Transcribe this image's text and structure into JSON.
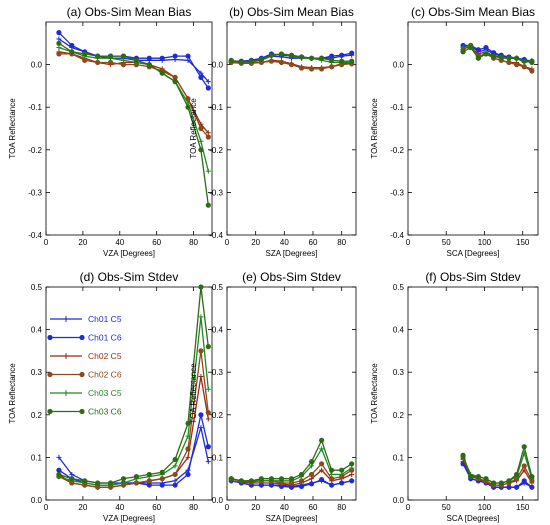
{
  "figure": {
    "background": "#ffffff"
  },
  "series_styles": [
    {
      "name": "Ch01 C5",
      "color": "#1f2bd6",
      "marker": "plus"
    },
    {
      "name": "Ch01 C6",
      "color": "#1f2bd6",
      "marker": "dot"
    },
    {
      "name": "Ch02 C5",
      "color": "#9b2a15",
      "marker": "plus"
    },
    {
      "name": "Ch02 C6",
      "color": "#8a4a1c",
      "marker": "dot"
    },
    {
      "name": "Ch03 C5",
      "color": "#1e8a1e",
      "marker": "plus"
    },
    {
      "name": "Ch03 C6",
      "color": "#2d6b14",
      "marker": "dot"
    }
  ],
  "chart_data": [
    {
      "id": "a",
      "type": "line",
      "title": "(a) Obs-Sim Mean Bias",
      "xlabel": "VZA [Degrees]",
      "ylabel": "TOA Reflectance",
      "xlim": [
        0,
        90
      ],
      "ylim": [
        -0.4,
        0.1
      ],
      "xticks": [
        0,
        20,
        40,
        60,
        80
      ],
      "xticklabels": [
        "0",
        "20",
        "40",
        "60",
        "80"
      ],
      "yticks": [
        -0.4,
        -0.3,
        -0.2,
        -0.1,
        0.0
      ],
      "yticklabels": [
        "-0.4",
        "-0.3",
        "-0.2",
        "-0.1",
        "0.0"
      ],
      "legend": null,
      "x": [
        7,
        14,
        21,
        28,
        35,
        42,
        49,
        56,
        63,
        70,
        77,
        84,
        88
      ],
      "series": [
        {
          "name": "Ch01 C5",
          "values": [
            0.06,
            0.04,
            0.03,
            0.02,
            0.015,
            0.015,
            0.01,
            0.01,
            0.01,
            0.012,
            0.01,
            -0.02,
            -0.04
          ]
        },
        {
          "name": "Ch01 C6",
          "values": [
            0.075,
            0.045,
            0.03,
            0.02,
            0.02,
            0.02,
            0.015,
            0.015,
            0.015,
            0.02,
            0.02,
            -0.03,
            -0.055
          ]
        },
        {
          "name": "Ch02 C5",
          "values": [
            0.03,
            0.025,
            0.015,
            0.005,
            0.0,
            0.005,
            0.005,
            0.0,
            -0.01,
            -0.03,
            -0.08,
            -0.14,
            -0.16
          ]
        },
        {
          "name": "Ch02 C6",
          "values": [
            0.025,
            0.025,
            0.01,
            0.005,
            0.005,
            0.0,
            0.0,
            -0.005,
            -0.015,
            -0.03,
            -0.08,
            -0.15,
            -0.17
          ]
        },
        {
          "name": "Ch03 C5",
          "values": [
            0.04,
            0.03,
            0.02,
            0.015,
            0.015,
            0.01,
            0.005,
            0.0,
            -0.02,
            -0.04,
            -0.09,
            -0.18,
            -0.25
          ]
        },
        {
          "name": "Ch03 C6",
          "values": [
            0.05,
            0.03,
            0.025,
            0.02,
            0.02,
            0.02,
            0.01,
            0.0,
            -0.02,
            -0.04,
            -0.1,
            -0.2,
            -0.33
          ]
        }
      ]
    },
    {
      "id": "b",
      "type": "line",
      "title": "(b) Obs-Sim Mean Bias",
      "xlabel": "SZA [Degrees]",
      "ylabel": "TOA Reflectance",
      "xlim": [
        0,
        90
      ],
      "ylim": [
        -0.4,
        0.1
      ],
      "xticks": [
        0,
        20,
        40,
        60,
        80
      ],
      "xticklabels": [
        "0",
        "20",
        "40",
        "60",
        "80"
      ],
      "yticks": [
        -0.4,
        -0.3,
        -0.2,
        -0.1,
        0.0
      ],
      "yticklabels": [
        "-0.4",
        "-0.3",
        "-0.2",
        "-0.1",
        "0.0"
      ],
      "legend": null,
      "x": [
        3,
        10,
        17,
        24,
        31,
        38,
        45,
        52,
        59,
        66,
        73,
        80,
        87
      ],
      "series": [
        {
          "name": "Ch01 C5",
          "values": [
            0.005,
            0.007,
            0.01,
            0.015,
            0.02,
            0.018,
            0.015,
            0.015,
            0.015,
            0.015,
            0.015,
            0.02,
            0.022
          ]
        },
        {
          "name": "Ch01 C6",
          "values": [
            0.008,
            0.008,
            0.01,
            0.015,
            0.025,
            0.022,
            0.02,
            0.018,
            0.015,
            0.015,
            0.02,
            0.022,
            0.027
          ]
        },
        {
          "name": "Ch02 C5",
          "values": [
            0.005,
            0.005,
            0.005,
            0.005,
            0.01,
            0.008,
            0.002,
            -0.005,
            -0.007,
            -0.007,
            -0.005,
            0.002,
            0.002
          ]
        },
        {
          "name": "Ch02 C6",
          "values": [
            0.005,
            0.003,
            0.003,
            0.005,
            0.008,
            0.005,
            0.0,
            -0.008,
            -0.01,
            -0.01,
            -0.005,
            0.0,
            0.002
          ]
        },
        {
          "name": "Ch03 C5",
          "values": [
            0.008,
            0.006,
            0.006,
            0.01,
            0.02,
            0.025,
            0.02,
            0.015,
            0.015,
            0.01,
            0.005,
            0.005,
            0.005
          ]
        },
        {
          "name": "Ch03 C6",
          "values": [
            0.01,
            0.006,
            0.008,
            0.012,
            0.022,
            0.025,
            0.022,
            0.018,
            0.015,
            0.015,
            0.01,
            0.008,
            0.008
          ]
        }
      ]
    },
    {
      "id": "c",
      "type": "line",
      "title": "(c) Obs-Sim Mean Bias",
      "xlabel": "SCA [Degrees]",
      "ylabel": "TOA Reflectance",
      "xlim": [
        0,
        170
      ],
      "ylim": [
        -0.4,
        0.1
      ],
      "xticks": [
        0,
        50,
        100,
        150
      ],
      "xticklabels": [
        "0",
        "50",
        "100",
        "150"
      ],
      "yticks": [
        -0.4,
        -0.3,
        -0.2,
        -0.1,
        0.0
      ],
      "yticklabels": [
        "-0.4",
        "-0.3",
        "-0.2",
        "-0.1",
        "0.0"
      ],
      "legend": null,
      "x": [
        72,
        82,
        92,
        102,
        112,
        122,
        132,
        142,
        152,
        162
      ],
      "series": [
        {
          "name": "Ch01 C5",
          "values": [
            0.04,
            0.045,
            0.03,
            0.035,
            0.025,
            0.02,
            0.015,
            0.015,
            0.01,
            0.005
          ]
        },
        {
          "name": "Ch01 C6",
          "values": [
            0.045,
            0.045,
            0.035,
            0.04,
            0.028,
            0.022,
            0.018,
            0.015,
            0.012,
            0.008
          ]
        },
        {
          "name": "Ch02 C5",
          "values": [
            0.04,
            0.04,
            0.025,
            0.03,
            0.015,
            0.01,
            0.005,
            0.005,
            -0.005,
            -0.01
          ]
        },
        {
          "name": "Ch02 C6",
          "values": [
            0.035,
            0.045,
            0.02,
            0.025,
            0.015,
            0.01,
            0.005,
            0.0,
            -0.005,
            -0.015
          ]
        },
        {
          "name": "Ch03 C5",
          "values": [
            0.04,
            0.045,
            0.015,
            0.03,
            0.02,
            0.015,
            0.015,
            0.015,
            0.005,
            0.01
          ]
        },
        {
          "name": "Ch03 C6",
          "values": [
            0.03,
            0.04,
            0.015,
            0.025,
            0.02,
            0.018,
            0.015,
            0.015,
            0.008,
            0.005
          ]
        }
      ]
    },
    {
      "id": "d",
      "type": "line",
      "title": "(d) Obs-Sim Stdev",
      "xlabel": "VZA [Degrees]",
      "ylabel": "TOA Reflectance",
      "xlim": [
        0,
        90
      ],
      "ylim": [
        0,
        0.5
      ],
      "xticks": [
        0,
        20,
        40,
        60,
        80
      ],
      "xticklabels": [
        "0",
        "20",
        "40",
        "60",
        "80"
      ],
      "yticks": [
        0.0,
        0.1,
        0.2,
        0.3,
        0.4,
        0.5
      ],
      "yticklabels": [
        "0.0",
        "0.1",
        "0.2",
        "0.3",
        "0.4",
        "0.5"
      ],
      "legend": "top-left",
      "x": [
        7,
        14,
        21,
        28,
        35,
        42,
        49,
        56,
        63,
        70,
        77,
        84,
        88
      ],
      "series": [
        {
          "name": "Ch01 C5",
          "values": [
            0.1,
            0.06,
            0.045,
            0.04,
            0.04,
            0.04,
            0.04,
            0.04,
            0.04,
            0.045,
            0.07,
            0.17,
            0.09
          ]
        },
        {
          "name": "Ch01 C6",
          "values": [
            0.07,
            0.05,
            0.04,
            0.035,
            0.035,
            0.04,
            0.04,
            0.035,
            0.035,
            0.035,
            0.06,
            0.2,
            0.125
          ]
        },
        {
          "name": "Ch02 C5",
          "values": [
            0.06,
            0.04,
            0.035,
            0.03,
            0.03,
            0.035,
            0.04,
            0.045,
            0.05,
            0.06,
            0.1,
            0.29,
            0.19
          ]
        },
        {
          "name": "Ch02 C6",
          "values": [
            0.055,
            0.04,
            0.035,
            0.03,
            0.03,
            0.035,
            0.04,
            0.045,
            0.05,
            0.06,
            0.12,
            0.35,
            0.205
          ]
        },
        {
          "name": "Ch03 C5",
          "values": [
            0.055,
            0.045,
            0.04,
            0.035,
            0.035,
            0.04,
            0.05,
            0.055,
            0.06,
            0.08,
            0.15,
            0.43,
            0.26
          ]
        },
        {
          "name": "Ch03 C6",
          "values": [
            0.06,
            0.05,
            0.045,
            0.04,
            0.04,
            0.05,
            0.055,
            0.06,
            0.065,
            0.095,
            0.18,
            0.5,
            0.36
          ]
        }
      ]
    },
    {
      "id": "e",
      "type": "line",
      "title": "(e) Obs-Sim Stdev",
      "xlabel": "SZA [Degrees]",
      "ylabel": "TOA Reflectance",
      "xlim": [
        0,
        90
      ],
      "ylim": [
        0,
        0.5
      ],
      "xticks": [
        0,
        20,
        40,
        60,
        80
      ],
      "xticklabels": [
        "0",
        "20",
        "40",
        "60",
        "80"
      ],
      "yticks": [
        0.0,
        0.1,
        0.2,
        0.3,
        0.4,
        0.5
      ],
      "yticklabels": [
        "0.0",
        "0.1",
        "0.2",
        "0.3",
        "0.4",
        "0.5"
      ],
      "legend": null,
      "x": [
        3,
        10,
        17,
        24,
        31,
        38,
        45,
        52,
        59,
        66,
        73,
        80,
        87
      ],
      "series": [
        {
          "name": "Ch01 C5",
          "values": [
            0.045,
            0.04,
            0.035,
            0.035,
            0.035,
            0.035,
            0.032,
            0.035,
            0.04,
            0.045,
            0.035,
            0.04,
            0.045
          ]
        },
        {
          "name": "Ch01 C6",
          "values": [
            0.045,
            0.04,
            0.035,
            0.035,
            0.035,
            0.032,
            0.03,
            0.032,
            0.038,
            0.048,
            0.035,
            0.04,
            0.045
          ]
        },
        {
          "name": "Ch02 C5",
          "values": [
            0.045,
            0.042,
            0.04,
            0.04,
            0.04,
            0.038,
            0.035,
            0.04,
            0.05,
            0.07,
            0.045,
            0.05,
            0.06
          ]
        },
        {
          "name": "Ch02 C6",
          "values": [
            0.05,
            0.045,
            0.042,
            0.045,
            0.045,
            0.04,
            0.04,
            0.045,
            0.06,
            0.085,
            0.05,
            0.055,
            0.07
          ]
        },
        {
          "name": "Ch03 C5",
          "values": [
            0.05,
            0.045,
            0.045,
            0.045,
            0.045,
            0.045,
            0.045,
            0.055,
            0.08,
            0.12,
            0.06,
            0.06,
            0.075
          ]
        },
        {
          "name": "Ch03 C6",
          "values": [
            0.05,
            0.045,
            0.045,
            0.05,
            0.05,
            0.05,
            0.05,
            0.06,
            0.09,
            0.14,
            0.07,
            0.07,
            0.085
          ]
        }
      ]
    },
    {
      "id": "f",
      "type": "line",
      "title": "(f) Obs-Sim Stdev",
      "xlabel": "SCA [Degrees]",
      "ylabel": "TOA Reflectance",
      "xlim": [
        0,
        170
      ],
      "ylim": [
        0,
        0.5
      ],
      "xticks": [
        0,
        50,
        100,
        150
      ],
      "xticklabels": [
        "0",
        "50",
        "100",
        "150"
      ],
      "yticks": [
        0.0,
        0.1,
        0.2,
        0.3,
        0.4,
        0.5
      ],
      "yticklabels": [
        "0.0",
        "0.1",
        "0.2",
        "0.3",
        "0.4",
        "0.5"
      ],
      "legend": null,
      "x": [
        72,
        82,
        92,
        102,
        112,
        122,
        132,
        142,
        152,
        162
      ],
      "series": [
        {
          "name": "Ch01 C5",
          "values": [
            0.09,
            0.05,
            0.045,
            0.04,
            0.03,
            0.03,
            0.03,
            0.03,
            0.04,
            0.03
          ]
        },
        {
          "name": "Ch01 C6",
          "values": [
            0.085,
            0.05,
            0.045,
            0.04,
            0.03,
            0.03,
            0.03,
            0.03,
            0.045,
            0.03
          ]
        },
        {
          "name": "Ch02 C5",
          "values": [
            0.095,
            0.055,
            0.05,
            0.04,
            0.035,
            0.035,
            0.04,
            0.045,
            0.07,
            0.04
          ]
        },
        {
          "name": "Ch02 C6",
          "values": [
            0.1,
            0.055,
            0.05,
            0.045,
            0.035,
            0.035,
            0.04,
            0.05,
            0.08,
            0.045
          ]
        },
        {
          "name": "Ch03 C5",
          "values": [
            0.1,
            0.06,
            0.055,
            0.05,
            0.04,
            0.04,
            0.045,
            0.055,
            0.11,
            0.05
          ]
        },
        {
          "name": "Ch03 C6",
          "values": [
            0.105,
            0.055,
            0.055,
            0.05,
            0.04,
            0.04,
            0.045,
            0.06,
            0.125,
            0.055
          ]
        }
      ]
    }
  ]
}
